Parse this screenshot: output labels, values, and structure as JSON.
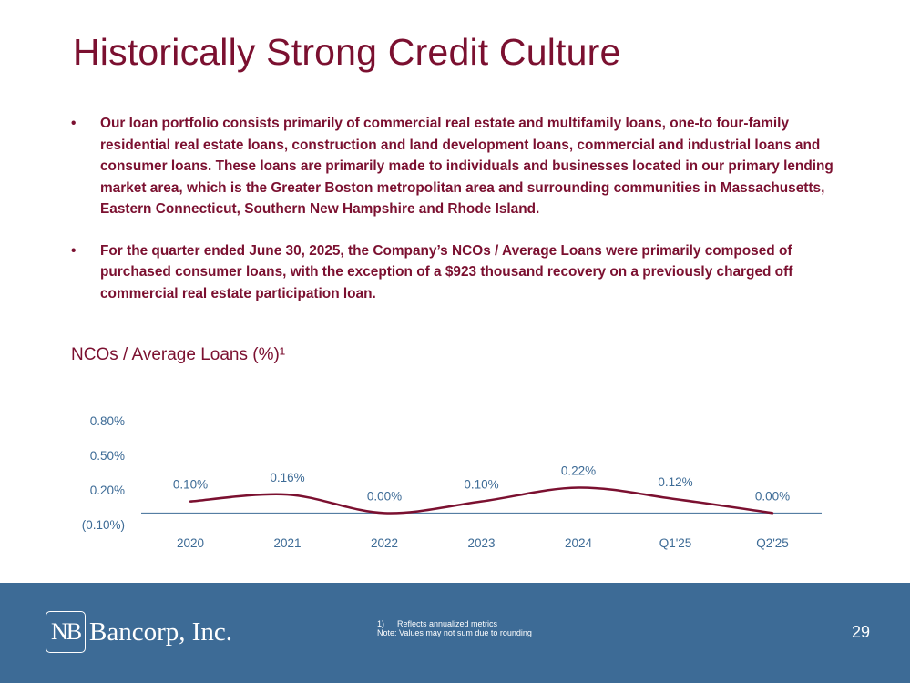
{
  "title": "Historically Strong Credit Culture",
  "bullets": [
    "Our loan portfolio consists primarily of commercial real estate and multifamily loans, one-to four-family residential real estate loans, construction and land development loans, commercial and industrial loans and consumer loans. These loans are primarily made to individuals and businesses located in our primary lending market area, which is the Greater Boston metropolitan area and surrounding communities in Massachusetts, Eastern Connecticut, Southern New Hampshire and Rhode Island.",
    "For the quarter ended June 30, 2025, the Company’s NCOs / Average Loans were primarily composed of purchased consumer loans, with the exception of a $923 thousand recovery on a previously charged off commercial real estate participation loan."
  ],
  "bullet_symbol": "•",
  "chart_label": "NCOs / Average Loans (%)¹",
  "chart_data": {
    "type": "line",
    "title": "NCOs / Average Loans (%)¹",
    "categories": [
      "2020",
      "2021",
      "2022",
      "2023",
      "2024",
      "Q1'25",
      "Q2'25"
    ],
    "series": [
      {
        "name": "NCOs / Average Loans (%)",
        "values": [
          0.1,
          0.16,
          0.0,
          0.1,
          0.22,
          0.12,
          0.0
        ],
        "labels": [
          "0.10%",
          "0.16%",
          "0.00%",
          "0.10%",
          "0.22%",
          "0.12%",
          "0.00%"
        ],
        "color": "#7b1030"
      }
    ],
    "yticks": [
      -0.1,
      0.2,
      0.5,
      0.8
    ],
    "ytick_labels": [
      "(0.10%)",
      "0.20%",
      "0.50%",
      "0.80%"
    ],
    "ylim": [
      -0.1,
      0.8
    ],
    "axis_color": "#3d6b96",
    "label_color": "#3d6b96"
  },
  "footer": {
    "logo_mark": "NB",
    "logo_text": "Bancorp, Inc.",
    "note1_num": "1)",
    "note1_text": "Reflects annualized metrics",
    "note2": "Note: Values may not sum due to rounding",
    "page_number": "29",
    "bg_color": "#3d6b96"
  }
}
